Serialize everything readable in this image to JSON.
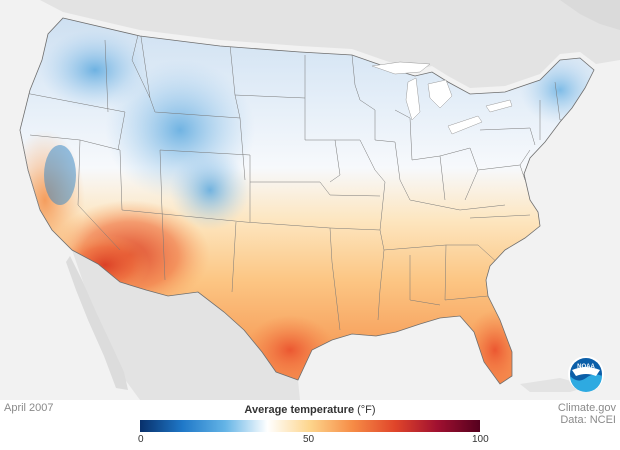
{
  "map": {
    "date": "April 2007",
    "legend": {
      "title": "Average temperature",
      "unit": "(°F)",
      "ticks": [
        "0",
        "50",
        "100"
      ],
      "colors": [
        "#08306b",
        "#1f78c8",
        "#64b4e6",
        "#ffffff",
        "#fdd58c",
        "#f68c46",
        "#e0452a",
        "#a01030",
        "#55001e"
      ]
    },
    "credit": {
      "site": "Climate.gov",
      "source": "Data: NCEI"
    },
    "logo_text": "NOAA",
    "palette": {
      "background": "#f2f2f2",
      "land_other": "#e3e3e3",
      "water": "#ffffff"
    }
  }
}
